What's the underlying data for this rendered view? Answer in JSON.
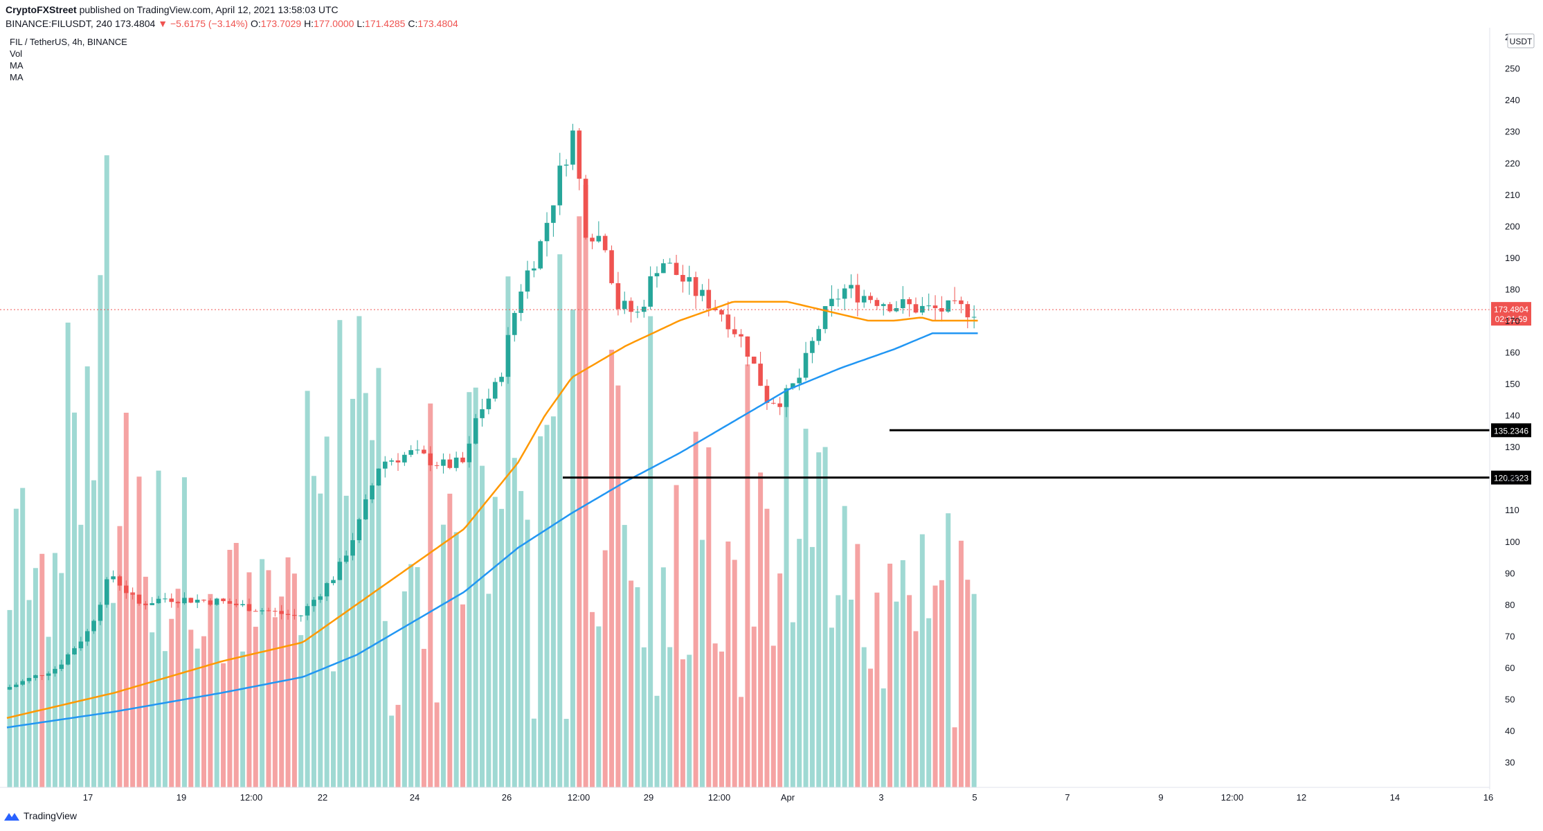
{
  "header": {
    "publisher": "CryptoFXStreet",
    "published_text": "published on TradingView.com, April 12, 2021 13:58:03 UTC",
    "symbol": "BINANCE:FILUSDT, 240",
    "last": "173.4804",
    "change": "−5.6175 (−3.14%)",
    "o_label": "O:",
    "o": "173.7029",
    "h_label": "H:",
    "h": "177.0000",
    "l_label": "L:",
    "l": "171.4285",
    "c_label": "C:",
    "c": "173.4804"
  },
  "legend": {
    "title": "FIL / TetherUS, 4h, BINANCE",
    "items": [
      "Vol",
      "MA",
      "MA"
    ]
  },
  "footer": {
    "brand": "TradingView"
  },
  "colors": {
    "up": "#26a69a",
    "down": "#ef5350",
    "vol_up": "#9fd9d3",
    "vol_down": "#f5a3a3",
    "ma_fast": "#ff9800",
    "ma_slow": "#2196f3",
    "level": "#000000",
    "price_line": "#ef5350"
  },
  "chart_data": {
    "type": "candlestick",
    "currency_label": "USDT",
    "y_ticks": [
      30,
      40,
      50,
      60,
      70,
      80,
      90,
      100,
      110,
      120,
      130,
      140,
      150,
      160,
      170,
      180,
      190,
      200,
      210,
      220,
      230,
      240,
      250,
      260
    ],
    "x_ticks": [
      "17",
      "19",
      "12:00",
      "22",
      "24",
      "26",
      "12:00",
      "29",
      "12:00",
      "Apr",
      "3",
      "5",
      "7",
      "9",
      "12:00",
      "12",
      "14",
      "16"
    ],
    "price_axis_range": [
      22,
      262
    ],
    "volume_axis_range": [
      22,
      83
    ],
    "last_price": {
      "label": "173.4804",
      "countdown": "02:01:59",
      "value": 173.48
    },
    "horizontal_levels": [
      {
        "label": "135.2346",
        "value": 135.2346
      },
      {
        "label": "120.2323",
        "value": 120.2323
      }
    ],
    "candle_count": 150,
    "price_anchors": [
      [
        0,
        53
      ],
      [
        10,
        60
      ],
      [
        16,
        72
      ],
      [
        20,
        90
      ],
      [
        25,
        80
      ],
      [
        30,
        82
      ],
      [
        40,
        81
      ],
      [
        55,
        76
      ],
      [
        58,
        82
      ],
      [
        62,
        90
      ],
      [
        66,
        105
      ],
      [
        70,
        125
      ],
      [
        76,
        128
      ],
      [
        82,
        124
      ],
      [
        86,
        125
      ],
      [
        88,
        140
      ],
      [
        92,
        150
      ],
      [
        96,
        180
      ],
      [
        100,
        195
      ],
      [
        104,
        220
      ],
      [
        106,
        230
      ],
      [
        108,
        200
      ],
      [
        112,
        195
      ],
      [
        114,
        175
      ],
      [
        118,
        172
      ],
      [
        122,
        190
      ],
      [
        128,
        180
      ],
      [
        134,
        172
      ],
      [
        138,
        162
      ],
      [
        142,
        145
      ],
      [
        145,
        145
      ],
      [
        148,
        152
      ],
      [
        152,
        170
      ],
      [
        156,
        180
      ],
      [
        160,
        178
      ],
      [
        166,
        175
      ],
      [
        172,
        173.5
      ]
    ],
    "ma_fast_series": [
      [
        0,
        44
      ],
      [
        20,
        52
      ],
      [
        40,
        62
      ],
      [
        55,
        68
      ],
      [
        65,
        80
      ],
      [
        75,
        92
      ],
      [
        85,
        104
      ],
      [
        95,
        125
      ],
      [
        100,
        140
      ],
      [
        105,
        152
      ],
      [
        115,
        162
      ],
      [
        125,
        170
      ],
      [
        135,
        176
      ],
      [
        145,
        176
      ],
      [
        150,
        174
      ],
      [
        155,
        172
      ],
      [
        160,
        170
      ],
      [
        165,
        170
      ],
      [
        170,
        171
      ],
      [
        172,
        170
      ]
    ],
    "ma_slow_series": [
      [
        0,
        41
      ],
      [
        20,
        46
      ],
      [
        40,
        52
      ],
      [
        55,
        57
      ],
      [
        65,
        64
      ],
      [
        75,
        74
      ],
      [
        85,
        84
      ],
      [
        95,
        98
      ],
      [
        105,
        109
      ],
      [
        115,
        119
      ],
      [
        125,
        128
      ],
      [
        135,
        138
      ],
      [
        145,
        148
      ],
      [
        155,
        155
      ],
      [
        165,
        161
      ],
      [
        172,
        166
      ]
    ]
  }
}
